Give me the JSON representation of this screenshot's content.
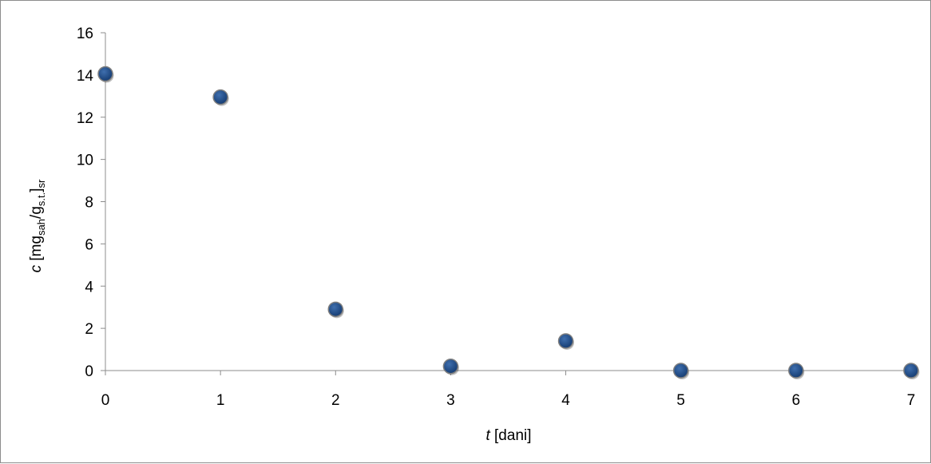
{
  "chart_data": {
    "type": "scatter",
    "title": "",
    "xlabel": {
      "italic": "t",
      "rest": " [dani]"
    },
    "ylabel": {
      "italic": "c",
      "p1": " [mg",
      "sub1": "sah",
      "p2": "/g",
      "sub2": "s.t.",
      "p3": "]",
      "sub3": "sr"
    },
    "xlim": [
      0,
      7
    ],
    "ylim": [
      0,
      16
    ],
    "x_ticks": [
      "0",
      "1",
      "2",
      "3",
      "4",
      "5",
      "6",
      "7"
    ],
    "y_ticks": [
      "0",
      "2",
      "4",
      "6",
      "8",
      "10",
      "12",
      "14",
      "16"
    ],
    "grid": false,
    "legend": "none",
    "marker_color": "#1f4e8c",
    "marker_edge_color": "#7f7f7f",
    "series": [
      {
        "x": [
          0,
          1,
          2,
          3,
          4,
          5,
          6,
          7
        ],
        "y": [
          14.05,
          12.95,
          2.9,
          0.2,
          1.4,
          0.0,
          0.0,
          0.0
        ]
      }
    ]
  }
}
